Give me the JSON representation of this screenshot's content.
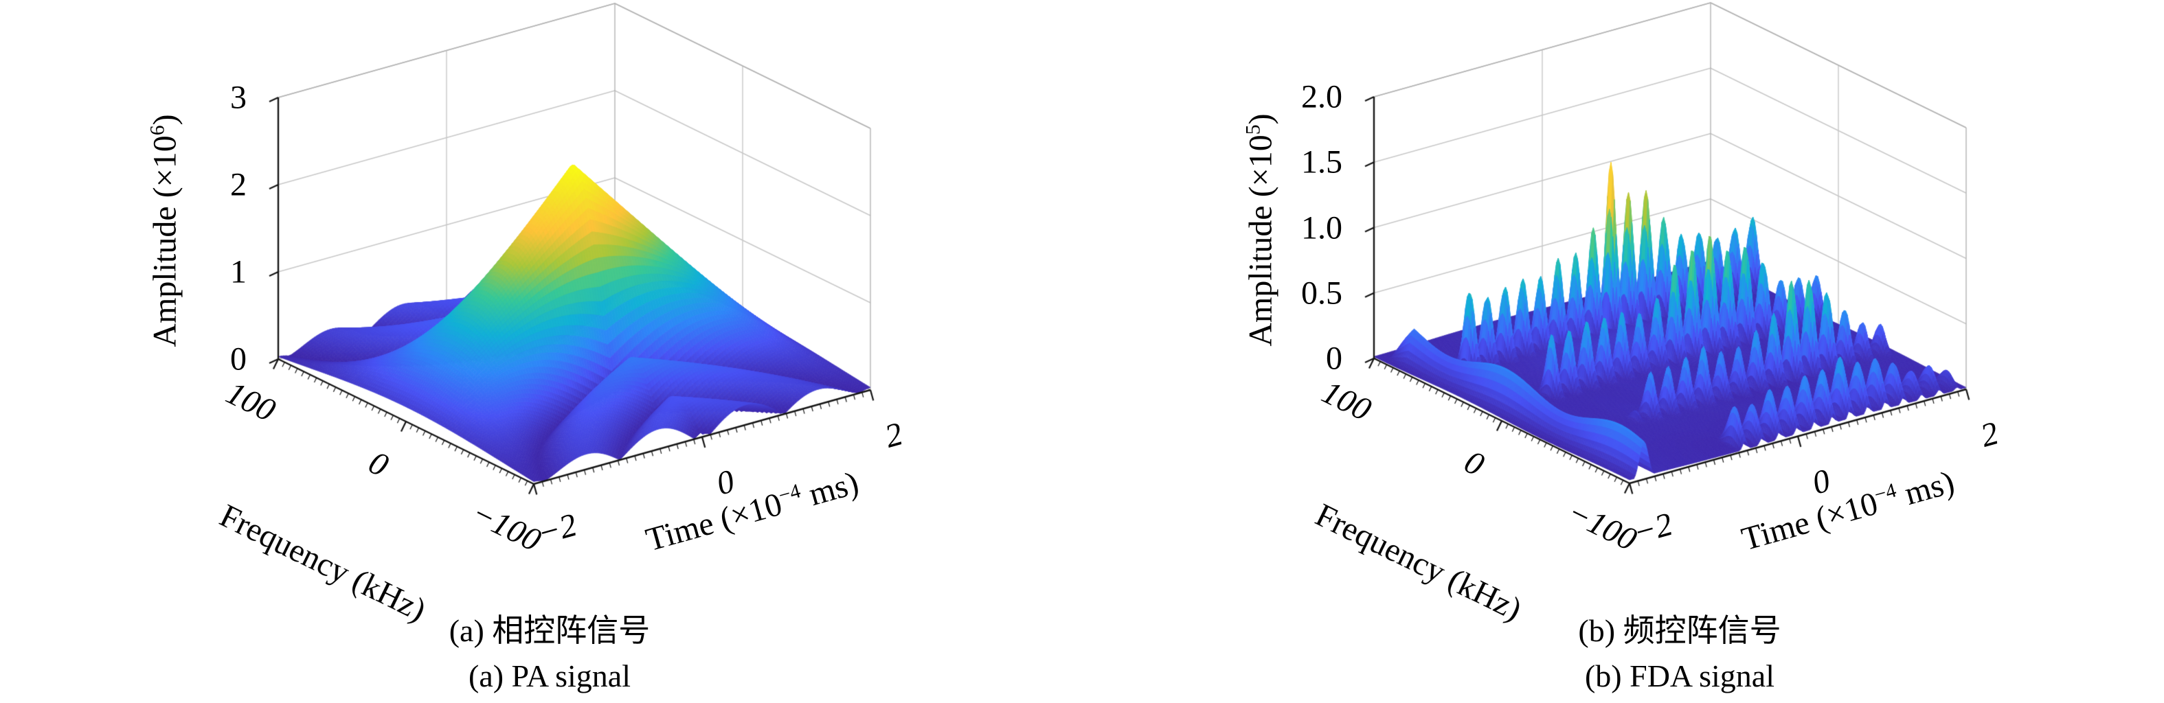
{
  "figure": {
    "background_color": "#ffffff",
    "grid_color": "#c7c7c7",
    "box_color": "#b2b2b2",
    "axis_color": "#141414",
    "colormap": "parula"
  },
  "chart_data": [
    {
      "type": "surface3d",
      "panel": "a",
      "caption_zh": "(a) 相控阵信号",
      "caption_en": "(a) PA signal",
      "legend": "none",
      "grid": true,
      "axes": {
        "x": {
          "label_pre": "Time (×10",
          "label_sup": "−4",
          "label_post": " ms)",
          "range": [
            -2,
            2
          ],
          "ticks": [
            {
              "v": -2,
              "t": "−2"
            },
            {
              "v": 0,
              "t": "0"
            },
            {
              "v": 2,
              "t": "2"
            }
          ]
        },
        "y": {
          "label_pre": "Frequency (kHz)",
          "label_sup": "",
          "label_post": "",
          "range": [
            100,
            -100
          ],
          "ticks": [
            {
              "v": 100,
              "t": "100"
            },
            {
              "v": 0,
              "t": "0"
            },
            {
              "v": -100,
              "t": "−100"
            }
          ]
        },
        "z": {
          "label_pre": "Amplitude (×10",
          "label_sup": "6",
          "label_post": ")",
          "range": [
            0,
            3
          ],
          "ticks": [
            {
              "v": 0,
              "t": "0"
            },
            {
              "v": 1,
              "t": "1"
            },
            {
              "v": 2,
              "t": "2"
            },
            {
              "v": 3,
              "t": "3"
            }
          ]
        }
      },
      "color_max": 2.4,
      "surface_model": {
        "kind": "pa_cone",
        "peak": 2.4,
        "peak_t": 0,
        "peak_f": 0,
        "t_halfwidth": 2.15,
        "null_scale": 3.1,
        "description": "Single triangular/conical peak of amplitude 2.4e6 at time 0, frequency 0 kHz, with sinc sidelobe ripples on a near-zero floor."
      }
    },
    {
      "type": "surface3d",
      "panel": "b",
      "caption_zh": "(b) 频控阵信号",
      "caption_en": "(b) FDA signal",
      "legend": "none",
      "grid": true,
      "axes": {
        "x": {
          "label_pre": "Time (×10",
          "label_sup": "−4",
          "label_post": " ms)",
          "range": [
            -2,
            2
          ],
          "ticks": [
            {
              "v": -2,
              "t": "−2"
            },
            {
              "v": 0,
              "t": "0"
            },
            {
              "v": 2,
              "t": "2"
            }
          ]
        },
        "y": {
          "label_pre": "Frequency (kHz)",
          "label_sup": "",
          "label_post": "",
          "range": [
            100,
            -100
          ],
          "ticks": [
            {
              "v": 100,
              "t": "100"
            },
            {
              "v": 0,
              "t": "0"
            },
            {
              "v": -100,
              "t": "−100"
            }
          ]
        },
        "z": {
          "label_pre": "Amplitude (×10",
          "label_sup": "5",
          "label_post": ")",
          "range": [
            0,
            2
          ],
          "ticks": [
            {
              "v": 0,
              "t": "0"
            },
            {
              "v": 0.5,
              "t": "0.5"
            },
            {
              "v": 1,
              "t": "1.0"
            },
            {
              "v": 1.5,
              "t": "1.5"
            },
            {
              "v": 2,
              "t": "2.0"
            }
          ]
        }
      },
      "color_max": 1.35,
      "surface_model": {
        "kind": "fda_spikes",
        "floor": 0.02,
        "spike_period": 0.21,
        "spike_halfwidth": 0.075,
        "wall": {
          "t": -1.83,
          "sigma": 0.075,
          "height": 0.33
        },
        "rows": [
          {
            "f": 60,
            "sigma": 5.5,
            "t_start": -1.62,
            "base": 0.62,
            "bump": {
              "t": 0.35,
              "h": 0.7,
              "w": 0.75
            },
            "tail": 1.0
          },
          {
            "f": 10,
            "sigma": 5.5,
            "t_start": -1.35,
            "base": 0.5,
            "bump": {
              "t": 0.65,
              "h": 0.5,
              "w": 0.8
            },
            "tail": 0.75
          },
          {
            "f": -40,
            "sigma": 5.5,
            "t_start": -1.05,
            "base": 0.42,
            "bump": {
              "t": 1.0,
              "h": 0.4,
              "w": 0.7
            },
            "tail": 0.5
          },
          {
            "f": -92,
            "sigma": 7.0,
            "t_start": -0.75,
            "base": 0.3,
            "bump": {
              "t": 0.5,
              "h": 0.15,
              "w": 0.9
            },
            "tail": 0.4
          }
        ],
        "description": "Comb of sharp spikes (period ~0.21 time units) along rows at frequencies ~60, 10, -40, -92 kHz; tallest cluster ~1.35e5 near t=0.35 at f=60; smooth onset wall ~0.33e5 at t=-1.83 across frequencies; low rippled floor."
      }
    }
  ]
}
